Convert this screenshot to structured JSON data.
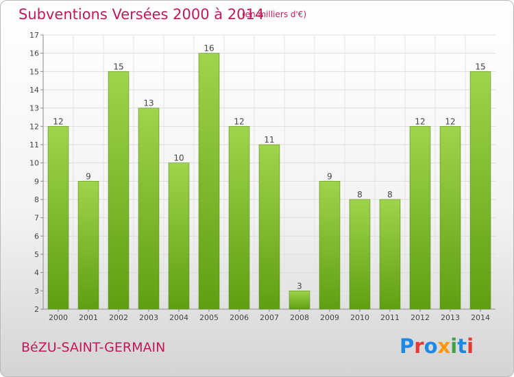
{
  "header": {
    "title": "Subventions Versées 2000 à 2014",
    "unit": "(en milliers d'€)"
  },
  "footer": {
    "commune": "BéZU-SAINT-GERMAIN",
    "logo": "Proxiti",
    "logo_colors": [
      "#1e88e5",
      "#e53935",
      "#1e88e5",
      "#ff9800",
      "#43a047",
      "#1e88e5",
      "#e53935"
    ]
  },
  "chart_data": {
    "type": "bar",
    "title": "Subventions Versées 2000 à 2014",
    "subtitle": "(en milliers d'€)",
    "categories": [
      "2000",
      "2001",
      "2002",
      "2003",
      "2004",
      "2005",
      "2006",
      "2007",
      "2008",
      "2009",
      "2010",
      "2011",
      "2012",
      "2013",
      "2014"
    ],
    "values": [
      12,
      9,
      15,
      13,
      10,
      16,
      12,
      11,
      3,
      9,
      8,
      8,
      12,
      12,
      15
    ],
    "ylim": [
      2,
      17
    ],
    "yticks": [
      2,
      3,
      4,
      5,
      6,
      7,
      8,
      9,
      10,
      11,
      12,
      13,
      14,
      15,
      16,
      17
    ],
    "grid": true,
    "bar_color_light": "#9fd44c",
    "bar_color_dark": "#5f9e12"
  }
}
